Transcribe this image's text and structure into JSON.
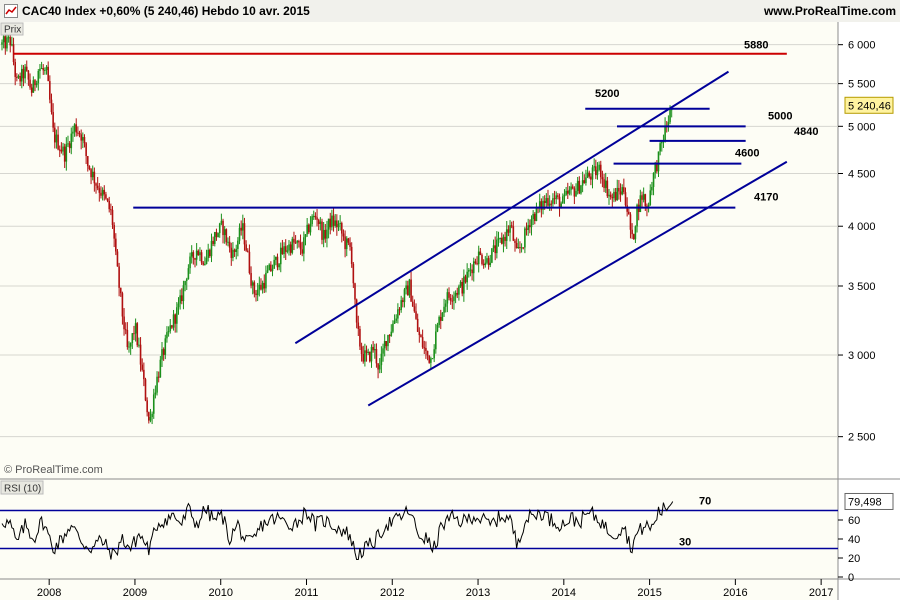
{
  "header": {
    "title": "CAC40 Index    +0,60% (5 240,46)    Hebdo    10 avr. 2015",
    "website": "www.ProRealTime.com"
  },
  "price_panel": {
    "label": "Prix",
    "watermark": "© ProRealTime.com"
  },
  "rsi_panel": {
    "label": "RSI (10)"
  },
  "colors": {
    "background": "#fdfdf5",
    "axis_bg": "#ffffff",
    "grid": "#d6d6d0",
    "up": "#1a8f1a",
    "down": "#b01010",
    "levels": "#000099",
    "resistance_5880": "#cc0000",
    "badge_price": "#fff3a0",
    "rsi_line": "#000000"
  },
  "chart_data": [
    {
      "type": "candlestick",
      "title": "CAC40 Index",
      "frequency": "Hebdo",
      "date": "10 avr. 2015",
      "change": "+0,60%",
      "last": 5240.46,
      "last_label": "5 240,46",
      "y_scale": "log",
      "ylim": [
        2300,
        6200
      ],
      "y_ticks": [
        2500,
        3000,
        3500,
        4000,
        4500,
        5000,
        5500,
        6000
      ],
      "y_tick_labels": [
        "2 500",
        "3 000",
        "3 500",
        "4 000",
        "4 500",
        "5 000",
        "5 500",
        "6 000"
      ],
      "x_range": [
        2007.45,
        2017.15
      ],
      "x_ticks": [
        2008,
        2009,
        2010,
        2011,
        2012,
        2013,
        2014,
        2015,
        2016,
        2017
      ],
      "x_tick_labels": [
        "2008",
        "2009",
        "2010",
        "2011",
        "2012",
        "2013",
        "2014",
        "2015",
        "2016",
        "2017"
      ],
      "anchors": [
        [
          2007.45,
          6000
        ],
        [
          2007.55,
          6050
        ],
        [
          2007.62,
          5500
        ],
        [
          2007.72,
          5650
        ],
        [
          2007.8,
          5400
        ],
        [
          2007.88,
          5700
        ],
        [
          2007.97,
          5620
        ],
        [
          2008.05,
          4900
        ],
        [
          2008.18,
          4700
        ],
        [
          2008.3,
          5000
        ],
        [
          2008.38,
          4900
        ],
        [
          2008.45,
          4600
        ],
        [
          2008.55,
          4400
        ],
        [
          2008.65,
          4250
        ],
        [
          2008.73,
          4100
        ],
        [
          2008.78,
          3700
        ],
        [
          2008.85,
          3300
        ],
        [
          2008.92,
          3000
        ],
        [
          2009.0,
          3200
        ],
        [
          2009.08,
          2900
        ],
        [
          2009.17,
          2560
        ],
        [
          2009.22,
          2750
        ],
        [
          2009.32,
          3000
        ],
        [
          2009.42,
          3200
        ],
        [
          2009.52,
          3350
        ],
        [
          2009.62,
          3650
        ],
        [
          2009.72,
          3800
        ],
        [
          2009.82,
          3700
        ],
        [
          2009.92,
          3900
        ],
        [
          2010.02,
          4000
        ],
        [
          2010.08,
          3850
        ],
        [
          2010.15,
          3750
        ],
        [
          2010.25,
          4000
        ],
        [
          2010.3,
          3800
        ],
        [
          2010.38,
          3450
        ],
        [
          2010.48,
          3500
        ],
        [
          2010.55,
          3600
        ],
        [
          2010.65,
          3700
        ],
        [
          2010.75,
          3800
        ],
        [
          2010.85,
          3850
        ],
        [
          2010.95,
          3800
        ],
        [
          2011.05,
          4050
        ],
        [
          2011.12,
          4100
        ],
        [
          2011.2,
          3900
        ],
        [
          2011.28,
          4050
        ],
        [
          2011.38,
          4000
        ],
        [
          2011.45,
          3850
        ],
        [
          2011.52,
          3800
        ],
        [
          2011.58,
          3200
        ],
        [
          2011.65,
          3000
        ],
        [
          2011.72,
          2980
        ],
        [
          2011.78,
          3050
        ],
        [
          2011.85,
          2900
        ],
        [
          2011.92,
          3100
        ],
        [
          2012.0,
          3200
        ],
        [
          2012.08,
          3350
        ],
        [
          2012.2,
          3500
        ],
        [
          2012.3,
          3150
        ],
        [
          2012.4,
          3000
        ],
        [
          2012.45,
          2980
        ],
        [
          2012.55,
          3250
        ],
        [
          2012.62,
          3400
        ],
        [
          2012.72,
          3450
        ],
        [
          2012.82,
          3500
        ],
        [
          2012.92,
          3650
        ],
        [
          2013.0,
          3750
        ],
        [
          2013.1,
          3700
        ],
        [
          2013.2,
          3800
        ],
        [
          2013.3,
          3900
        ],
        [
          2013.38,
          4000
        ],
        [
          2013.45,
          3750
        ],
        [
          2013.52,
          3850
        ],
        [
          2013.6,
          4050
        ],
        [
          2013.7,
          4150
        ],
        [
          2013.8,
          4250
        ],
        [
          2013.9,
          4250
        ],
        [
          2013.98,
          4200
        ],
        [
          2014.05,
          4300
        ],
        [
          2014.15,
          4350
        ],
        [
          2014.25,
          4450
        ],
        [
          2014.35,
          4500
        ],
        [
          2014.42,
          4550
        ],
        [
          2014.48,
          4400
        ],
        [
          2014.55,
          4250
        ],
        [
          2014.62,
          4300
        ],
        [
          2014.7,
          4350
        ],
        [
          2014.75,
          4100
        ],
        [
          2014.8,
          3850
        ],
        [
          2014.85,
          4150
        ],
        [
          2014.92,
          4300
        ],
        [
          2014.97,
          4150
        ],
        [
          2015.02,
          4400
        ],
        [
          2015.1,
          4650
        ],
        [
          2015.18,
          4950
        ],
        [
          2015.24,
          5150
        ],
        [
          2015.27,
          5240
        ]
      ],
      "horizontal_levels": [
        {
          "value": 5880,
          "label": "5880",
          "from": 2007.58,
          "to": 2016.6
        },
        {
          "value": 5200,
          "label": "5200",
          "from": 2014.25,
          "to": 2015.7
        },
        {
          "value": 5000,
          "label": "5000",
          "from": 2014.62,
          "to": 2016.12
        },
        {
          "value": 4840,
          "label": "4840",
          "from": 2015.0,
          "to": 2016.12
        },
        {
          "value": 4600,
          "label": "4600",
          "from": 2014.58,
          "to": 2016.07
        },
        {
          "value": 4170,
          "label": "4170",
          "from": 2008.98,
          "to": 2016.0
        }
      ],
      "channel_lines": [
        {
          "from": [
            2010.87,
            3080
          ],
          "to": [
            2015.92,
            5650
          ]
        },
        {
          "from": [
            2011.72,
            2680
          ],
          "to": [
            2016.6,
            4620
          ]
        }
      ]
    },
    {
      "type": "line",
      "title": "RSI (10)",
      "ylim": [
        0,
        100
      ],
      "y_ticks": [
        0,
        20,
        40,
        60
      ],
      "levels": [
        70,
        30
      ],
      "last": 79.498,
      "last_label": "79,498",
      "anchors": [
        [
          2007.45,
          60
        ],
        [
          2007.55,
          55
        ],
        [
          2007.62,
          35
        ],
        [
          2007.72,
          55
        ],
        [
          2007.82,
          40
        ],
        [
          2007.92,
          60
        ],
        [
          2008.05,
          30
        ],
        [
          2008.15,
          40
        ],
        [
          2008.25,
          55
        ],
        [
          2008.4,
          35
        ],
        [
          2008.5,
          30
        ],
        [
          2008.6,
          40
        ],
        [
          2008.75,
          22
        ],
        [
          2008.85,
          40
        ],
        [
          2008.95,
          30
        ],
        [
          2009.05,
          45
        ],
        [
          2009.17,
          28
        ],
        [
          2009.25,
          55
        ],
        [
          2009.35,
          60
        ],
        [
          2009.45,
          65
        ],
        [
          2009.55,
          55
        ],
        [
          2009.62,
          72
        ],
        [
          2009.72,
          55
        ],
        [
          2009.82,
          72
        ],
        [
          2009.92,
          60
        ],
        [
          2010.02,
          65
        ],
        [
          2010.1,
          40
        ],
        [
          2010.2,
          55
        ],
        [
          2010.3,
          35
        ],
        [
          2010.38,
          38
        ],
        [
          2010.48,
          55
        ],
        [
          2010.58,
          60
        ],
        [
          2010.68,
          62
        ],
        [
          2010.78,
          55
        ],
        [
          2010.9,
          58
        ],
        [
          2011.0,
          70
        ],
        [
          2011.1,
          55
        ],
        [
          2011.2,
          60
        ],
        [
          2011.3,
          55
        ],
        [
          2011.4,
          50
        ],
        [
          2011.5,
          45
        ],
        [
          2011.58,
          22
        ],
        [
          2011.65,
          28
        ],
        [
          2011.72,
          32
        ],
        [
          2011.82,
          40
        ],
        [
          2011.92,
          55
        ],
        [
          2012.05,
          60
        ],
        [
          2012.2,
          70
        ],
        [
          2012.3,
          45
        ],
        [
          2012.4,
          40
        ],
        [
          2012.48,
          28
        ],
        [
          2012.58,
          55
        ],
        [
          2012.7,
          62
        ],
        [
          2012.82,
          58
        ],
        [
          2012.95,
          65
        ],
        [
          2013.05,
          60
        ],
        [
          2013.15,
          55
        ],
        [
          2013.28,
          65
        ],
        [
          2013.38,
          60
        ],
        [
          2013.45,
          35
        ],
        [
          2013.55,
          60
        ],
        [
          2013.65,
          65
        ],
        [
          2013.75,
          68
        ],
        [
          2013.85,
          60
        ],
        [
          2013.98,
          55
        ],
        [
          2014.08,
          62
        ],
        [
          2014.18,
          58
        ],
        [
          2014.3,
          68
        ],
        [
          2014.42,
          60
        ],
        [
          2014.5,
          50
        ],
        [
          2014.6,
          45
        ],
        [
          2014.7,
          55
        ],
        [
          2014.78,
          30
        ],
        [
          2014.85,
          45
        ],
        [
          2014.95,
          55
        ],
        [
          2015.02,
          50
        ],
        [
          2015.1,
          68
        ],
        [
          2015.18,
          72
        ],
        [
          2015.27,
          79.5
        ]
      ]
    }
  ]
}
